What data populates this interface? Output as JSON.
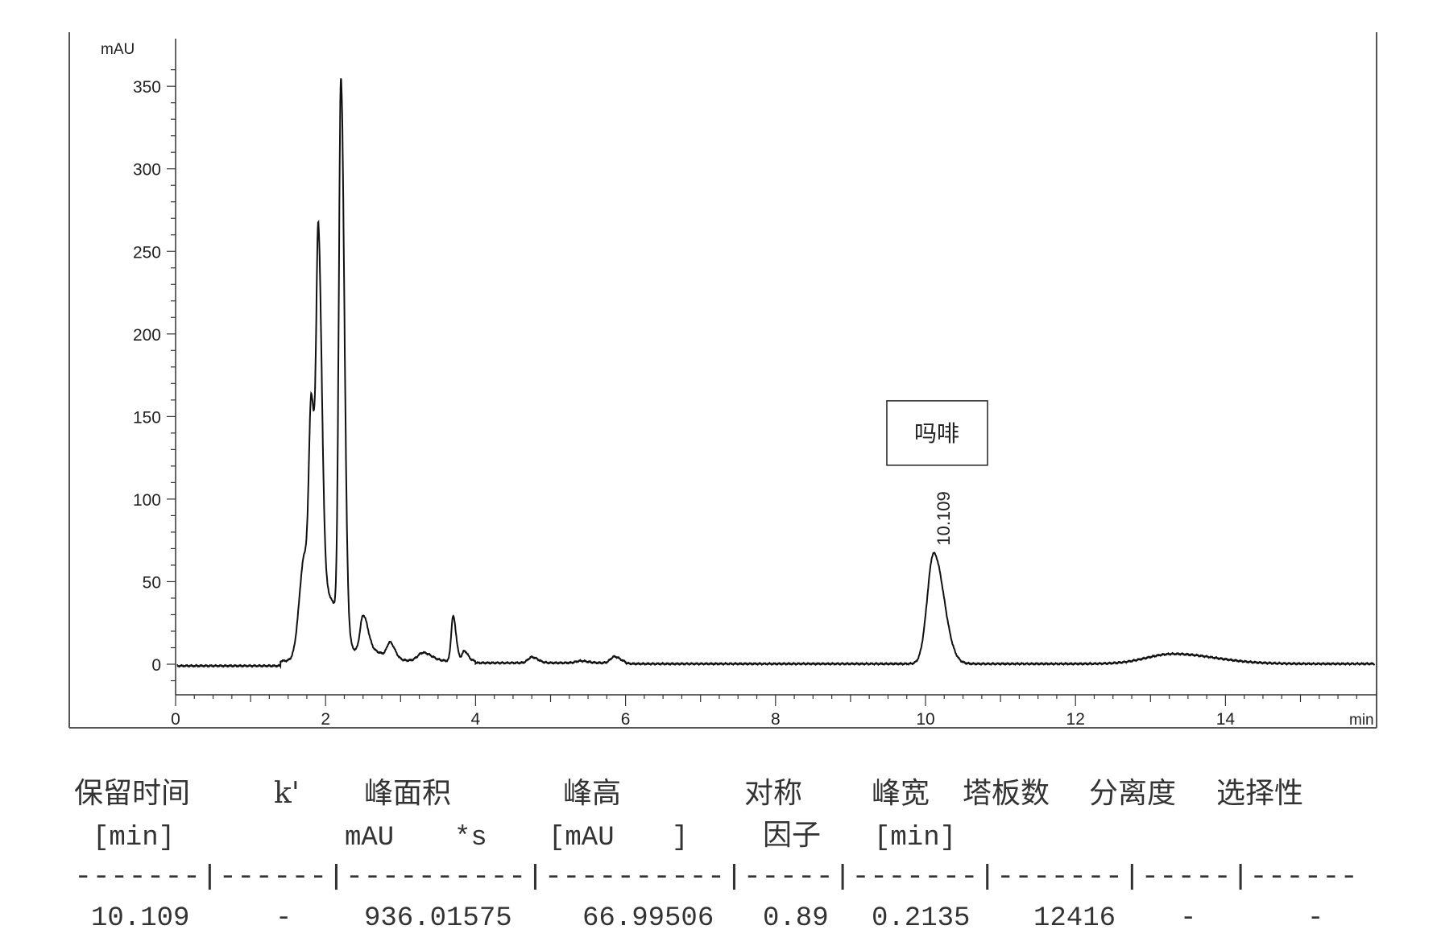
{
  "chart_data": {
    "type": "line",
    "ylabel": "mAU",
    "xlabel": "min",
    "xlim": [
      0,
      16
    ],
    "ylim": [
      -18,
      370
    ],
    "x_ticks": [
      0,
      2,
      4,
      6,
      8,
      10,
      12,
      14
    ],
    "y_ticks": [
      0,
      50,
      100,
      150,
      200,
      250,
      300,
      350
    ],
    "grid": false,
    "line_color": "#111111",
    "peaks": [
      {
        "rt": 1.72,
        "height": 62,
        "width": 0.07
      },
      {
        "rt": 1.81,
        "height": 105,
        "width": 0.03
      },
      {
        "rt": 1.905,
        "height": 205,
        "width": 0.028
      },
      {
        "rt": 2.0,
        "height": 40,
        "width": 0.12
      },
      {
        "rt": 2.205,
        "height": 330,
        "width": 0.028
      },
      {
        "rt": 2.5,
        "height": 22,
        "width": 0.04
      },
      {
        "rt": 2.6,
        "height": 6,
        "width": 0.12
      },
      {
        "rt": 2.86,
        "height": 9,
        "width": 0.04
      },
      {
        "rt": 3.3,
        "height": 5,
        "width": 0.07
      },
      {
        "rt": 3.7,
        "height": 27,
        "width": 0.025
      },
      {
        "rt": 3.85,
        "height": 6,
        "width": 0.03
      },
      {
        "rt": 4.75,
        "height": 3.5,
        "width": 0.05
      },
      {
        "rt": 5.4,
        "height": 1.2,
        "width": 0.06
      },
      {
        "rt": 5.85,
        "height": 3.8,
        "width": 0.05
      },
      {
        "rt": 10.109,
        "height": 67,
        "width": 0.085
      },
      {
        "rt": 13.3,
        "height": 6,
        "width": 0.35
      }
    ],
    "annotations": [
      {
        "text": "10.109",
        "x": 10.109,
        "y": 67
      },
      {
        "text": "吗啡",
        "x": 10.15,
        "y": 140,
        "boxed": true
      }
    ]
  },
  "table": {
    "headers": [
      "保留时间",
      "k'",
      "峰面积",
      "峰高",
      "对称",
      "峰宽",
      "塔板数",
      "分离度",
      "选择性"
    ],
    "units": [
      "[min]",
      "mAU",
      "*s",
      "[mAU",
      "]",
      "因子",
      "[min]"
    ],
    "separator": "-------|------|----------|----------|-----|-------|-------|-----|------",
    "row": [
      "10.109",
      "-",
      "936.01575",
      "66.99506",
      "0.89",
      "0.2135",
      "12416",
      "-",
      "-"
    ]
  }
}
